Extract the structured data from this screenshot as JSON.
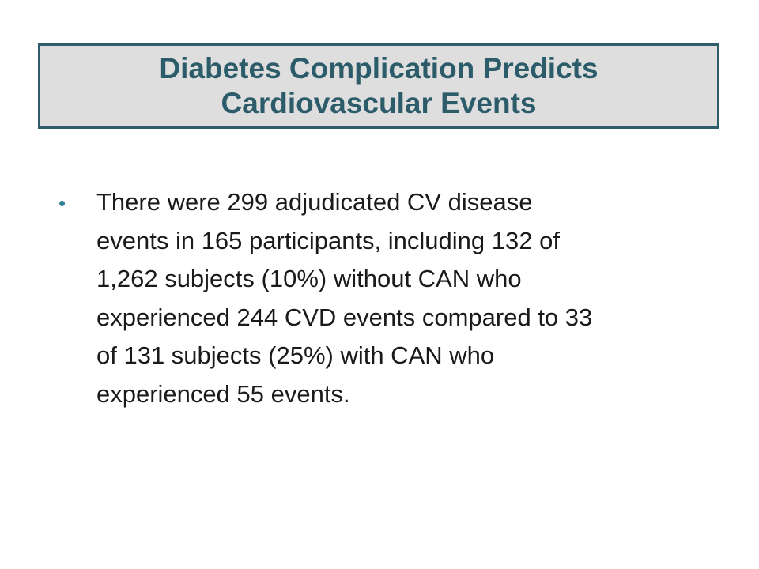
{
  "slide": {
    "title_lines": [
      "Diabetes Complication Predicts",
      "Cardiovascular Events"
    ],
    "bullets": [
      {
        "marker": "•",
        "lines": [
          "There were 299 adjudicated CV disease",
          "events in 165 participants, including 132 of",
          "1,262 subjects (10%) without CAN who",
          "experienced 244 CVD events compared to 33",
          "of 131 subjects (25%) with CAN who",
          "experienced 55 events."
        ]
      }
    ]
  },
  "colors": {
    "title_text": "#2c5c6a",
    "title_border": "#2f5d6b",
    "title_background": "#dedede",
    "bullet_marker": "#2c7f95",
    "body_text": "#1a1a1a"
  }
}
